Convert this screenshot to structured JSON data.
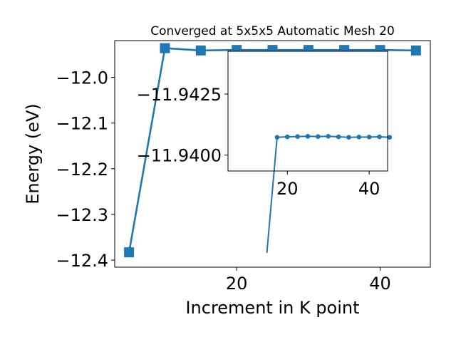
{
  "chart_data": [
    {
      "type": "line",
      "title": "Converged at 5x5x5 Automatic Mesh 20",
      "xlabel": "Increment in K point",
      "ylabel": "Energy (eV)",
      "x": [
        5,
        10,
        15,
        20,
        25,
        30,
        35,
        40,
        45
      ],
      "series": [
        {
          "values": [
            -12.383,
            -11.936,
            -11.941,
            -11.94,
            -11.94,
            -11.94,
            -11.94,
            -11.94,
            -11.941
          ]
        }
      ],
      "xlim": [
        3.0,
        47.0
      ],
      "ylim": [
        -12.4155,
        -11.9195
      ],
      "xticks": [
        20,
        40
      ],
      "xtick_labels": [
        "20",
        "40"
      ],
      "yticks": [
        -12.0,
        -12.1,
        -12.2,
        -12.3,
        -12.4
      ],
      "ytick_labels": [
        "−12.0",
        "−12.1",
        "−12.2",
        "−12.3",
        "−12.4"
      ],
      "marker": "square",
      "color": "#1f77b4",
      "grid": false
    },
    {
      "type": "line",
      "role": "inset",
      "x": [
        15,
        17.5,
        20,
        22.5,
        25,
        27.5,
        30,
        32.5,
        35,
        37.5,
        40,
        42.5,
        45
      ],
      "series": [
        {
          "values": [
            -11.936,
            -11.94073,
            -11.94075,
            -11.94076,
            -11.94077,
            -11.94076,
            -11.94077,
            -11.94075,
            -11.94073,
            -11.94074,
            -11.94074,
            -11.94075,
            -11.94073
          ]
        }
      ],
      "xlim": [
        5.5,
        44.5
      ],
      "ylim": [
        -11.93935,
        -11.94425
      ],
      "xticks": [
        20,
        40
      ],
      "xtick_labels": [
        "20",
        "40"
      ],
      "yticks": [
        -11.9425,
        -11.94
      ],
      "ytick_labels": [
        "−11.9425",
        "−11.9400"
      ],
      "marker": "circle",
      "color": "#1f77b4",
      "grid": false
    }
  ]
}
